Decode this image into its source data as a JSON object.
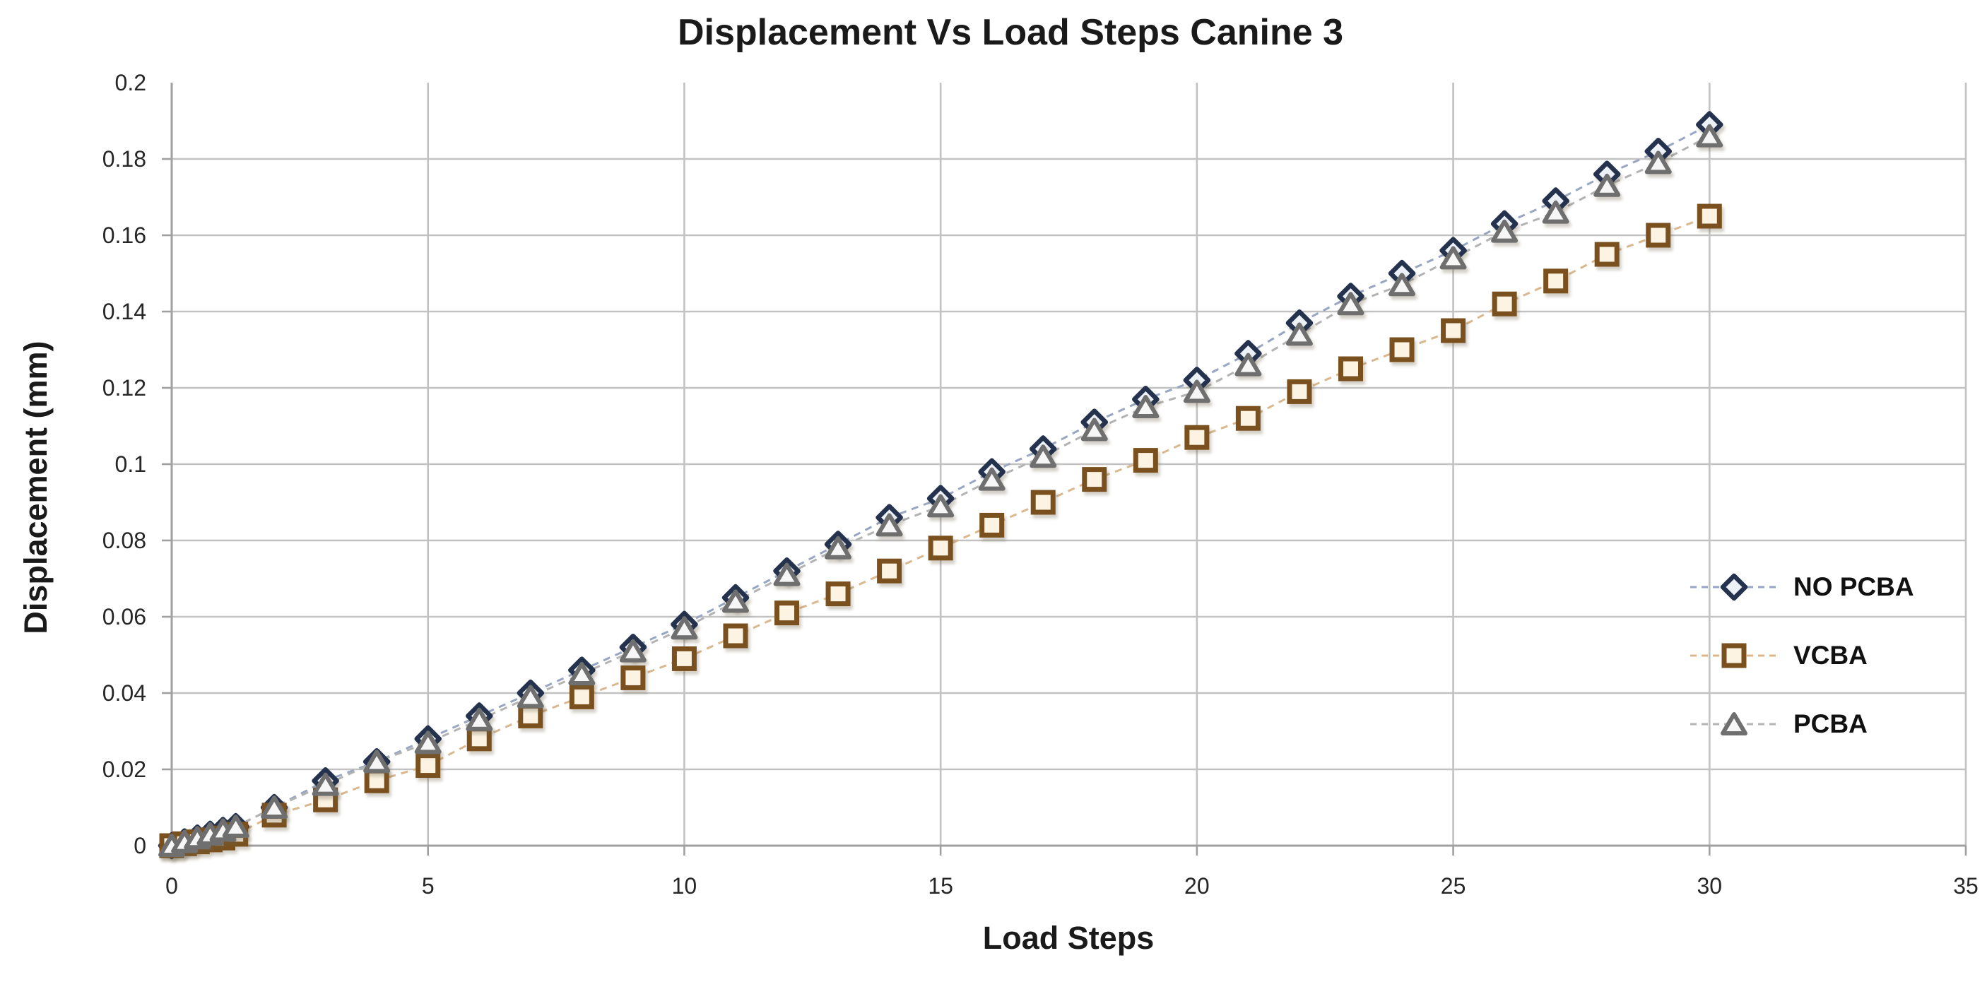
{
  "chart_data": {
    "type": "line",
    "title": "Displacement Vs Load Steps Canine 3",
    "xlabel": "Load Steps",
    "ylabel": "Displacement (mm)",
    "xlim": [
      0,
      35
    ],
    "ylim": [
      0,
      0.2
    ],
    "grid": true,
    "legend_position": "right-middle",
    "x_ticks": [
      0,
      5,
      10,
      15,
      20,
      25,
      30,
      35
    ],
    "x_tick_labels": [
      "0",
      "5",
      "10",
      "15",
      "20",
      "25",
      "30",
      "35"
    ],
    "y_ticks": [
      0,
      0.02,
      0.04,
      0.06,
      0.08,
      0.1,
      0.12,
      0.14,
      0.16,
      0.18,
      0.2
    ],
    "y_tick_labels": [
      "0",
      "0.02",
      "0.04",
      "0.06",
      "0.08",
      "0.1",
      "0.12",
      "0.14",
      "0.16",
      "0.18",
      "0.2"
    ],
    "x": [
      0,
      0.25,
      0.5,
      0.75,
      1,
      1.25,
      2,
      3,
      4,
      5,
      6,
      7,
      8,
      9,
      10,
      11,
      12,
      13,
      14,
      15,
      16,
      17,
      18,
      19,
      20,
      21,
      22,
      23,
      24,
      25,
      26,
      27,
      28,
      29,
      30
    ],
    "series": [
      {
        "name": "NO PCBA",
        "marker": "diamond",
        "color": "#24324E",
        "fill": "#ECF0F7",
        "line_color": "#97A6C2",
        "values": [
          0,
          0.001,
          0.002,
          0.003,
          0.004,
          0.005,
          0.01,
          0.017,
          0.022,
          0.028,
          0.034,
          0.04,
          0.046,
          0.052,
          0.058,
          0.065,
          0.072,
          0.079,
          0.086,
          0.091,
          0.098,
          0.104,
          0.111,
          0.117,
          0.122,
          0.129,
          0.137,
          0.144,
          0.15,
          0.156,
          0.163,
          0.169,
          0.176,
          0.182,
          0.189
        ]
      },
      {
        "name": "VCBA",
        "marker": "square",
        "color": "#7A511E",
        "fill": "#FCF3E2",
        "line_color": "#D9B88F",
        "values": [
          0,
          0.0005,
          0.001,
          0.0015,
          0.002,
          0.003,
          0.008,
          0.012,
          0.017,
          0.021,
          0.028,
          0.034,
          0.039,
          0.044,
          0.049,
          0.055,
          0.061,
          0.066,
          0.072,
          0.078,
          0.084,
          0.09,
          0.096,
          0.101,
          0.107,
          0.112,
          0.119,
          0.125,
          0.13,
          0.135,
          0.142,
          0.148,
          0.155,
          0.16,
          0.165
        ]
      },
      {
        "name": "PCBA",
        "marker": "triangle",
        "color": "#6F6F6F",
        "fill": "#F6F6F6",
        "line_color": "#B3B3B3",
        "values": [
          0,
          0.001,
          0.002,
          0.003,
          0.004,
          0.005,
          0.01,
          0.016,
          0.022,
          0.027,
          0.033,
          0.039,
          0.045,
          0.051,
          0.057,
          0.064,
          0.071,
          0.078,
          0.084,
          0.089,
          0.096,
          0.102,
          0.109,
          0.115,
          0.119,
          0.126,
          0.134,
          0.142,
          0.147,
          0.154,
          0.161,
          0.166,
          0.173,
          0.179,
          0.186
        ]
      }
    ],
    "layout": {
      "grid_color": "#C2C2C2",
      "axis_color": "#A0A0A0",
      "text_color": "#262626"
    }
  },
  "legend_rows_top": [
    808,
    905,
    1002
  ]
}
